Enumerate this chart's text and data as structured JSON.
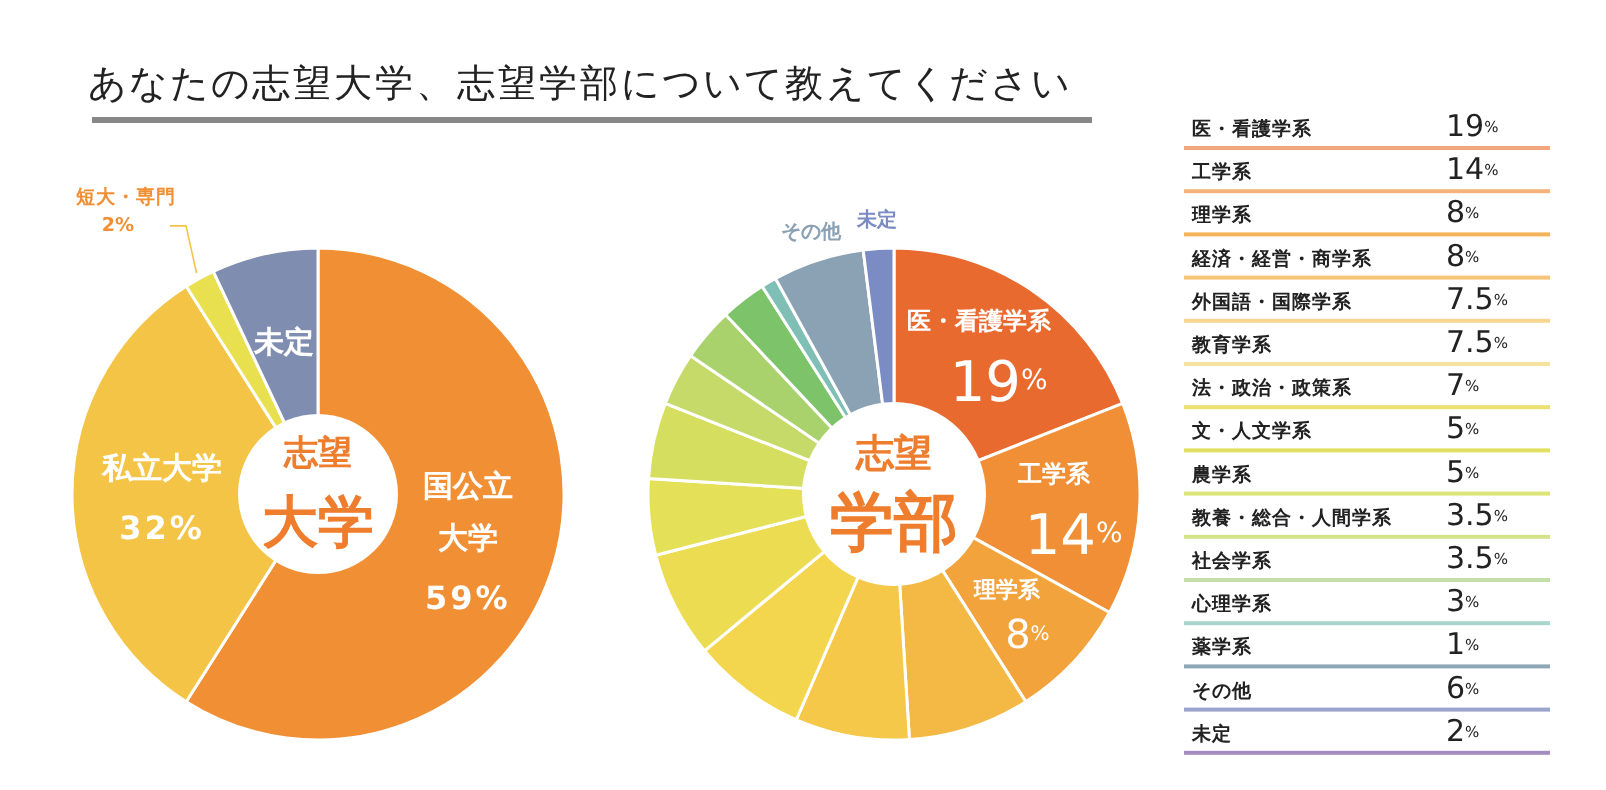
{
  "chart_data": [
    {
      "type": "donut",
      "title": "あなたの志望大学、志望学部について教えてください",
      "categories": [
        "国公立大学",
        "私立大学",
        "短大・専門",
        "未定"
      ],
      "values": [
        59,
        32,
        2,
        7
      ],
      "colors": [
        "#f18f34",
        "#f4c447",
        "#e9e050",
        "#7f8db0"
      ],
      "value_labels": [
        "59%",
        "32%",
        "2%",
        null
      ],
      "annotations": [
        "志望",
        "大学"
      ]
    },
    {
      "type": "donut",
      "categories": [
        "医・看護学系",
        "工学系",
        "理学系",
        null,
        null,
        null,
        null,
        null,
        null,
        null,
        null,
        null,
        null,
        "その他",
        "未定"
      ],
      "values": [
        19,
        14,
        8,
        8,
        7.5,
        7.5,
        7,
        5,
        5,
        3.5,
        3.5,
        3,
        1,
        6,
        2
      ],
      "colors": [
        "#e96a2f",
        "#f08f36",
        "#f2a33c",
        "#f4b844",
        "#f5c84a",
        "#f3d54e",
        "#ecdc52",
        "#e4e058",
        "#d5de5e",
        "#c5da68",
        "#a9d16c",
        "#7cc36a",
        "#7fbfb6",
        "#8aa2b4",
        "#7b8cc4"
      ],
      "value_labels": [
        "19%",
        "14%",
        "8%",
        null,
        null,
        null,
        null,
        null,
        null,
        null,
        null,
        null,
        null,
        null,
        null
      ],
      "annotations": [
        "志望",
        "学部"
      ]
    },
    {
      "type": "other",
      "categories": [
        "医・看護学系",
        "工学系",
        "理学系",
        "経済・経営・商学系",
        "外国語・国際学系",
        "教育学系",
        "法・政治・政策系",
        "文・人文学系",
        "農学系",
        "教養・総合・人間学系",
        "社会学系",
        "心理学系",
        "薬学系",
        "その他",
        "未定"
      ],
      "value_labels": [
        "19%",
        "14%",
        "8%",
        "8%",
        "7.5%",
        "7.5%",
        "7%",
        "5%",
        "5%",
        "3.5%",
        "3.5%",
        "3%",
        "1%",
        "6%",
        "2%"
      ],
      "colors": [
        "#f2a77a",
        "#f4b37a",
        "#f4b45a",
        "#f6c478",
        "#f8d690",
        "#f6e3a0",
        "#ece070",
        "#e2e060",
        "#dde47a",
        "#d3e38a",
        "#c4dfa8",
        "#a8d6cc",
        "#8fa8b8",
        "#9aa4cc",
        "#a48cc0"
      ]
    }
  ]
}
